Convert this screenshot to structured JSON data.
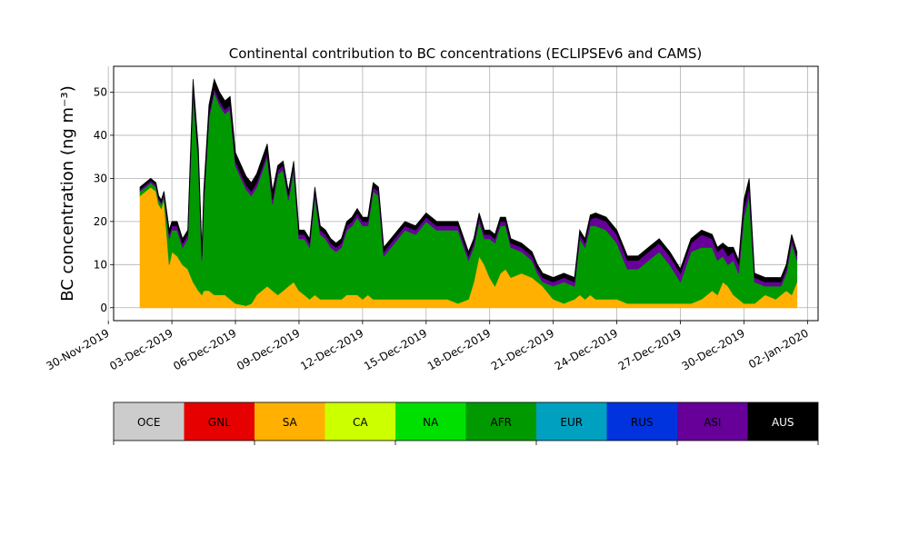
{
  "chart_data": {
    "type": "area",
    "stacked": true,
    "title": "Continental contribution to BC concentrations (ECLIPSEv6 and CAMS)",
    "ylabel": "BC concentration (ng m⁻³)",
    "xlabel": "",
    "ylim": [
      -3,
      56
    ],
    "xlim": [
      "2019-11-30T06:00",
      "2020-01-02T12:00"
    ],
    "x_tick_labels": [
      "30-Nov-2019",
      "03-Dec-2019",
      "06-Dec-2019",
      "09-Dec-2019",
      "12-Dec-2019",
      "15-Dec-2019",
      "18-Dec-2019",
      "21-Dec-2019",
      "24-Dec-2019",
      "27-Dec-2019",
      "30-Dec-2019",
      "02-Jan-2020"
    ],
    "y_ticks": [
      0,
      10,
      20,
      30,
      40,
      50
    ],
    "grid": true,
    "legend": {
      "placement": "colorbar below plot",
      "items": [
        {
          "name": "OCE",
          "color": "#cccccc"
        },
        {
          "name": "GNL",
          "color": "#e60000"
        },
        {
          "name": "SA",
          "color": "#ffb000"
        },
        {
          "name": "CA",
          "color": "#ccff00"
        },
        {
          "name": "NA",
          "color": "#00e000"
        },
        {
          "name": "AFR",
          "color": "#009900"
        },
        {
          "name": "EUR",
          "color": "#00a0c0"
        },
        {
          "name": "RUS",
          "color": "#0033dd"
        },
        {
          "name": "ASI",
          "color": "#660099"
        },
        {
          "name": "AUS",
          "color": "#000000"
        }
      ]
    },
    "x": [
      "2019-12-01T12:00",
      "2019-12-01T18:00",
      "2019-12-02T00:00",
      "2019-12-02T06:00",
      "2019-12-02T09:00",
      "2019-12-02T12:00",
      "2019-12-02T15:00",
      "2019-12-02T21:00",
      "2019-12-03T00:00",
      "2019-12-03T06:00",
      "2019-12-03T12:00",
      "2019-12-03T18:00",
      "2019-12-04T00:00",
      "2019-12-04T06:00",
      "2019-12-04T10:00",
      "2019-12-04T12:00",
      "2019-12-04T18:00",
      "2019-12-05T00:00",
      "2019-12-05T06:00",
      "2019-12-05T12:00",
      "2019-12-05T18:00",
      "2019-12-06T00:00",
      "2019-12-06T12:00",
      "2019-12-06T18:00",
      "2019-12-07T00:00",
      "2019-12-07T12:00",
      "2019-12-07T18:00",
      "2019-12-08T00:00",
      "2019-12-08T06:00",
      "2019-12-08T12:00",
      "2019-12-08T18:00",
      "2019-12-09T00:00",
      "2019-12-09T06:00",
      "2019-12-09T12:00",
      "2019-12-09T18:00",
      "2019-12-10T00:00",
      "2019-12-10T06:00",
      "2019-12-10T12:00",
      "2019-12-10T18:00",
      "2019-12-11T00:00",
      "2019-12-11T06:00",
      "2019-12-11T12:00",
      "2019-12-11T18:00",
      "2019-12-12T00:00",
      "2019-12-12T06:00",
      "2019-12-12T12:00",
      "2019-12-12T18:00",
      "2019-12-13T00:00",
      "2019-12-13T12:00",
      "2019-12-14T00:00",
      "2019-12-14T12:00",
      "2019-12-15T00:00",
      "2019-12-15T12:00",
      "2019-12-16T00:00",
      "2019-12-16T12:00",
      "2019-12-17T00:00",
      "2019-12-17T06:00",
      "2019-12-17T12:00",
      "2019-12-17T18:00",
      "2019-12-18T00:00",
      "2019-12-18T06:00",
      "2019-12-18T12:00",
      "2019-12-18T18:00",
      "2019-12-19T00:00",
      "2019-12-19T12:00",
      "2019-12-20T00:00",
      "2019-12-20T06:00",
      "2019-12-20T12:00",
      "2019-12-21T00:00",
      "2019-12-21T12:00",
      "2019-12-22T00:00",
      "2019-12-22T06:00",
      "2019-12-22T12:00",
      "2019-12-22T18:00",
      "2019-12-23T00:00",
      "2019-12-23T12:00",
      "2019-12-24T00:00",
      "2019-12-24T12:00",
      "2019-12-25T00:00",
      "2019-12-25T12:00",
      "2019-12-26T00:00",
      "2019-12-26T12:00",
      "2019-12-27T00:00",
      "2019-12-27T12:00",
      "2019-12-28T00:00",
      "2019-12-28T12:00",
      "2019-12-28T18:00",
      "2019-12-29T00:00",
      "2019-12-29T06:00",
      "2019-12-29T12:00",
      "2019-12-29T18:00",
      "2019-12-30T00:00",
      "2019-12-30T06:00",
      "2019-12-30T12:00",
      "2019-12-31T00:00",
      "2019-12-31T12:00",
      "2019-12-31T18:00",
      "2020-01-01T00:00",
      "2020-01-01T06:00",
      "2020-01-01T12:00"
    ],
    "series": [
      {
        "name": "SA",
        "color": "#ffb000",
        "values": [
          26,
          27,
          28,
          27,
          24,
          23,
          25,
          10,
          13,
          12,
          10,
          9,
          6,
          4,
          3,
          4,
          4,
          3,
          3,
          3,
          2,
          1,
          0.5,
          1,
          3,
          5,
          4,
          3,
          4,
          5,
          6,
          4,
          3,
          2,
          3,
          2,
          2,
          2,
          2,
          2,
          3,
          3,
          3,
          2,
          3,
          2,
          2,
          2,
          2,
          2,
          2,
          2,
          2,
          2,
          1,
          2,
          6,
          12,
          10,
          7,
          5,
          8,
          9,
          7,
          8,
          7,
          6,
          5,
          2,
          1,
          2,
          3,
          2,
          3,
          2,
          2,
          2,
          1,
          1,
          1,
          1,
          1,
          1,
          1,
          2,
          4,
          3,
          6,
          5,
          3,
          2,
          1,
          1,
          1,
          3,
          2,
          3,
          4,
          3,
          6
        ]
      },
      {
        "name": "AFR",
        "color": "#009900",
        "values": [
          1,
          1,
          1,
          1,
          1,
          1,
          1,
          6,
          5,
          6,
          4,
          7,
          44,
          30,
          8,
          20,
          40,
          47,
          44,
          42,
          44,
          32,
          27,
          25,
          25,
          30,
          20,
          28,
          28,
          20,
          26,
          12,
          13,
          12,
          23,
          15,
          14,
          12,
          11,
          12,
          15,
          16,
          18,
          17,
          16,
          25,
          24,
          10,
          13,
          16,
          15,
          18,
          16,
          16,
          17,
          9,
          8,
          8,
          6,
          9,
          10,
          11,
          10,
          7,
          5,
          4,
          2,
          1,
          3,
          5,
          3,
          13,
          12,
          16,
          17,
          16,
          13,
          8,
          8,
          10,
          12,
          9,
          5,
          12,
          12,
          10,
          8,
          6,
          5,
          8,
          6,
          20,
          25,
          5,
          2,
          3,
          2,
          4,
          12,
          5
        ]
      },
      {
        "name": "ASI",
        "color": "#660099",
        "values": [
          0.5,
          0.5,
          0.5,
          0.5,
          0.5,
          0.5,
          0.5,
          1,
          1,
          1,
          1,
          1,
          1,
          1,
          1,
          1,
          1,
          1,
          1,
          1,
          1,
          1,
          1,
          1,
          1,
          1,
          1,
          1,
          1,
          1,
          1,
          1,
          1,
          1,
          1,
          1,
          1,
          1,
          1,
          1,
          1,
          1,
          1,
          1,
          1,
          1,
          1,
          1,
          1,
          1,
          1,
          1,
          1,
          1,
          1,
          1,
          1,
          1,
          1,
          1,
          1,
          1,
          1,
          1,
          1,
          1,
          1,
          1,
          1,
          1,
          1,
          1,
          1,
          1.5,
          2,
          2,
          2,
          2,
          2,
          2,
          2,
          2,
          2,
          2,
          3,
          2,
          2,
          2,
          2,
          2,
          2,
          2,
          2,
          1,
          1,
          1,
          1,
          1,
          1,
          1
        ]
      },
      {
        "name": "AUS",
        "color": "#000000",
        "values": [
          0.5,
          0.5,
          0.5,
          0.5,
          0.5,
          0.5,
          0.5,
          1,
          1,
          1,
          1,
          1,
          2,
          2,
          1,
          2,
          2,
          2,
          2,
          2,
          2,
          2,
          2,
          2,
          2,
          2,
          2,
          1,
          1,
          1,
          1,
          1,
          1,
          1,
          1,
          1,
          1,
          1,
          1,
          1,
          1,
          1,
          1,
          1,
          1,
          1,
          1,
          1,
          1,
          1,
          1,
          1,
          1,
          1,
          1,
          1,
          1,
          1,
          1,
          1,
          1,
          1,
          1,
          1,
          1,
          1,
          1,
          1,
          1,
          1,
          1,
          1,
          1,
          1,
          1,
          1,
          1,
          1,
          1,
          1,
          1,
          1,
          1,
          1,
          1,
          1,
          1,
          1,
          2,
          1,
          1,
          2,
          2,
          1,
          1,
          1,
          1,
          1,
          1,
          1
        ]
      }
    ]
  }
}
